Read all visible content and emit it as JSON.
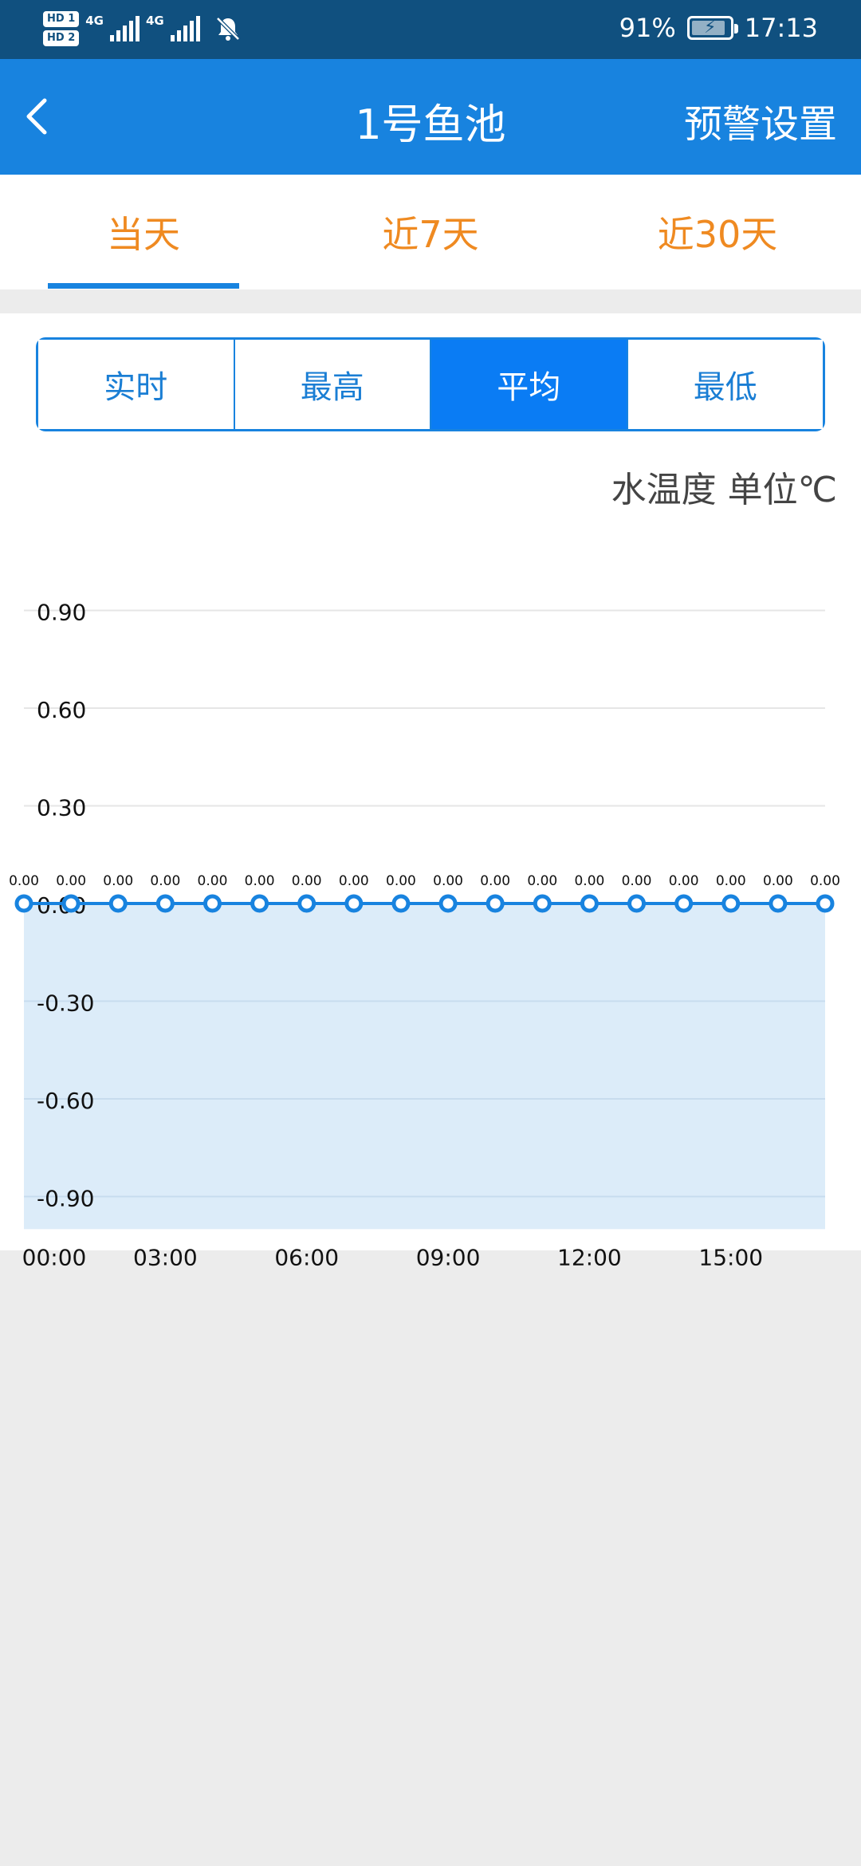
{
  "status_bar": {
    "hd1": "HD 1",
    "hd2": "HD 2",
    "net1": "4G",
    "net2": "4G",
    "battery_percent": "91%",
    "battery_level": 0.91,
    "time": "17:13"
  },
  "app_bar": {
    "title": "1号鱼池",
    "action": "预警设置"
  },
  "period_tabs": [
    "当天",
    "近7天",
    "近30天"
  ],
  "period_selected": 0,
  "metric_tabs": [
    "实时",
    "最高",
    "平均",
    "最低"
  ],
  "metric_selected": 2,
  "unit_label": "水温度 单位℃",
  "colors": {
    "accent": "#1883df",
    "tab_text": "#ef8a21",
    "segment_active": "#0a7cf4",
    "area_fill": "#dcecf9"
  },
  "chart_data": {
    "type": "area",
    "x_tick_labels": [
      "00:00",
      "03:00",
      "06:00",
      "09:00",
      "12:00",
      "15:00"
    ],
    "y_tick_labels": [
      "0.90",
      "0.60",
      "0.30",
      "0.00",
      "-0.30",
      "-0.60",
      "-0.90"
    ],
    "y_ticks": [
      0.9,
      0.6,
      0.3,
      0.0,
      -0.3,
      -0.6,
      -0.9
    ],
    "ylim": [
      -1.0,
      0.9
    ],
    "x": [
      "00:00",
      "01:00",
      "02:00",
      "03:00",
      "04:00",
      "05:00",
      "06:00",
      "07:00",
      "08:00",
      "09:00",
      "10:00",
      "11:00",
      "12:00",
      "13:00",
      "14:00",
      "15:00",
      "16:00",
      "17:00"
    ],
    "values": [
      0,
      0,
      0,
      0,
      0,
      0,
      0,
      0,
      0,
      0,
      0,
      0,
      0,
      0,
      0,
      0,
      0,
      0
    ],
    "point_labels": [
      "0.00",
      "0.00",
      "0.00",
      "0.00",
      "0.00",
      "0.00",
      "0.00",
      "0.00",
      "0.00",
      "0.00",
      "0.00",
      "0.00",
      "0.00",
      "0.00",
      "0.00",
      "0.00",
      "0.00",
      "0.00"
    ],
    "grid": true
  }
}
